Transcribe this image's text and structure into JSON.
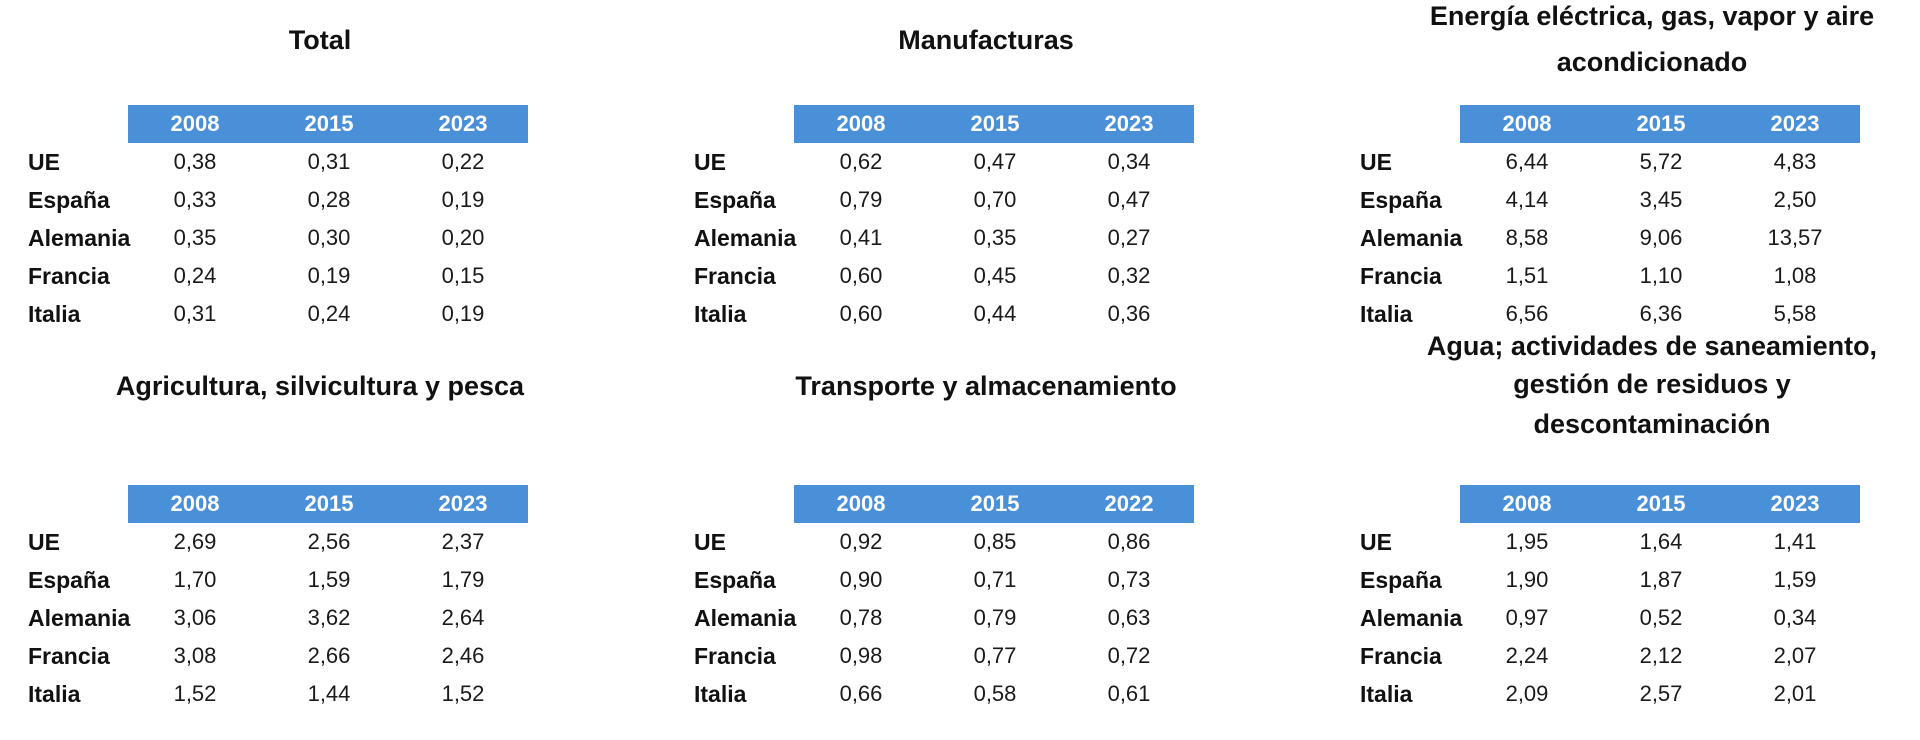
{
  "panels": [
    {
      "title": [
        "Total"
      ],
      "years": [
        "2008",
        "2015",
        "2023"
      ],
      "rows": [
        {
          "label": "UE",
          "values": [
            "0,38",
            "0,31",
            "0,22"
          ]
        },
        {
          "label": "España",
          "values": [
            "0,33",
            "0,28",
            "0,19"
          ]
        },
        {
          "label": "Alemania",
          "values": [
            "0,35",
            "0,30",
            "0,20"
          ]
        },
        {
          "label": "Francia",
          "values": [
            "0,24",
            "0,19",
            "0,15"
          ]
        },
        {
          "label": "Italia",
          "values": [
            "0,31",
            "0,24",
            "0,19"
          ]
        }
      ]
    },
    {
      "title": [
        "Manufacturas"
      ],
      "years": [
        "2008",
        "2015",
        "2023"
      ],
      "rows": [
        {
          "label": "UE",
          "values": [
            "0,62",
            "0,47",
            "0,34"
          ]
        },
        {
          "label": "España",
          "values": [
            "0,79",
            "0,70",
            "0,47"
          ]
        },
        {
          "label": "Alemania",
          "values": [
            "0,41",
            "0,35",
            "0,27"
          ]
        },
        {
          "label": "Francia",
          "values": [
            "0,60",
            "0,45",
            "0,32"
          ]
        },
        {
          "label": "Italia",
          "values": [
            "0,60",
            "0,44",
            "0,36"
          ]
        }
      ]
    },
    {
      "title": [
        "Energía eléctrica, gas, vapor y aire",
        "acondicionado"
      ],
      "years": [
        "2008",
        "2015",
        "2023"
      ],
      "rows": [
        {
          "label": "UE",
          "values": [
            "6,44",
            "5,72",
            "4,83"
          ]
        },
        {
          "label": "España",
          "values": [
            "4,14",
            "3,45",
            "2,50"
          ]
        },
        {
          "label": "Alemania",
          "values": [
            "8,58",
            "9,06",
            "13,57"
          ]
        },
        {
          "label": "Francia",
          "values": [
            "1,51",
            "1,10",
            "1,08"
          ]
        },
        {
          "label": "Italia",
          "values": [
            "6,56",
            "6,36",
            "5,58"
          ]
        }
      ]
    },
    {
      "title": [
        "Agricultura, silvicultura y pesca"
      ],
      "years": [
        "2008",
        "2015",
        "2023"
      ],
      "rows": [
        {
          "label": "UE",
          "values": [
            "2,69",
            "2,56",
            "2,37"
          ]
        },
        {
          "label": "España",
          "values": [
            "1,70",
            "1,59",
            "1,79"
          ]
        },
        {
          "label": "Alemania",
          "values": [
            "3,06",
            "3,62",
            "2,64"
          ]
        },
        {
          "label": "Francia",
          "values": [
            "3,08",
            "2,66",
            "2,46"
          ]
        },
        {
          "label": "Italia",
          "values": [
            "1,52",
            "1,44",
            "1,52"
          ]
        }
      ]
    },
    {
      "title": [
        "Transporte y almacenamiento"
      ],
      "years": [
        "2008",
        "2015",
        "2022"
      ],
      "rows": [
        {
          "label": "UE",
          "values": [
            "0,92",
            "0,85",
            "0,86"
          ]
        },
        {
          "label": "España",
          "values": [
            "0,90",
            "0,71",
            "0,73"
          ]
        },
        {
          "label": "Alemania",
          "values": [
            "0,78",
            "0,79",
            "0,63"
          ]
        },
        {
          "label": "Francia",
          "values": [
            "0,98",
            "0,77",
            "0,72"
          ]
        },
        {
          "label": "Italia",
          "values": [
            "0,66",
            "0,58",
            "0,61"
          ]
        }
      ]
    },
    {
      "title": [
        "Agua; actividades de saneamiento,",
        "gestión de residuos y",
        "descontaminación"
      ],
      "years": [
        "2008",
        "2015",
        "2023"
      ],
      "rows": [
        {
          "label": "UE",
          "values": [
            "1,95",
            "1,64",
            "1,41"
          ]
        },
        {
          "label": "España",
          "values": [
            "1,90",
            "1,87",
            "1,59"
          ]
        },
        {
          "label": "Alemania",
          "values": [
            "0,97",
            "0,52",
            "0,34"
          ]
        },
        {
          "label": "Francia",
          "values": [
            "2,24",
            "2,12",
            "2,07"
          ]
        },
        {
          "label": "Italia",
          "values": [
            "2,09",
            "2,57",
            "2,01"
          ]
        }
      ]
    }
  ],
  "colors": {
    "header_bg": "#4a90d9",
    "header_text": "#ffffff"
  }
}
